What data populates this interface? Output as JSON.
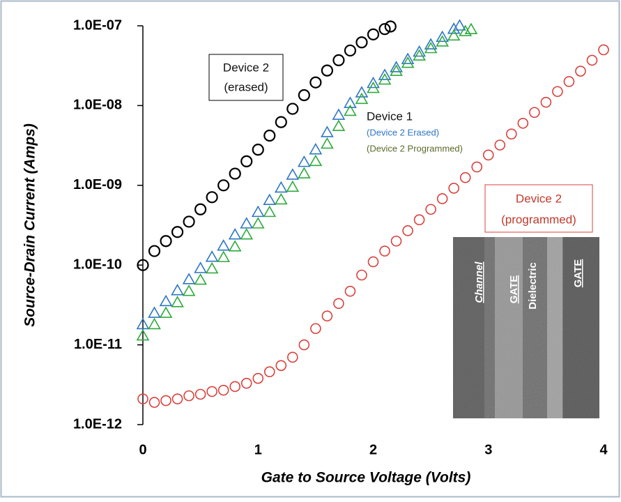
{
  "chart_data": {
    "type": "scatter",
    "log_y": true,
    "xlabel": "Gate to Source Voltage (Volts)",
    "ylabel": "Source-Drain Current (Amps)",
    "xlim": [
      0,
      4
    ],
    "xticks": [
      0,
      1,
      2,
      3,
      4
    ],
    "ylim": [
      1e-12,
      1e-07
    ],
    "yticks": [
      {
        "value": 1e-12,
        "label": "1.0E-12"
      },
      {
        "value": 1e-11,
        "label": "1.0E-11"
      },
      {
        "value": 1e-10,
        "label": "1.0E-10"
      },
      {
        "value": 1e-09,
        "label": "1.0E-09"
      },
      {
        "value": 1e-08,
        "label": "1.0E-08"
      },
      {
        "value": 1e-07,
        "label": "1.0E-07"
      }
    ],
    "series": [
      {
        "name": "Device 2",
        "note": "(erased)",
        "color": "#000000",
        "marker": "circle",
        "x": [
          0,
          0.1,
          0.2,
          0.3,
          0.4,
          0.5,
          0.6,
          0.7,
          0.8,
          0.9,
          1.0,
          1.1,
          1.2,
          1.3,
          1.4,
          1.5,
          1.6,
          1.7,
          1.8,
          1.9,
          2.0,
          2.1,
          2.15
        ],
        "values": [
          1e-10,
          1.5e-10,
          2e-10,
          2.6e-10,
          3.5e-10,
          5e-10,
          7.1e-10,
          1e-09,
          1.4e-09,
          2e-09,
          2.8e-09,
          4.2e-09,
          6.2e-09,
          9.1e-09,
          1.35e-08,
          1.95e-08,
          2.75e-08,
          3.7e-08,
          4.9e-08,
          6.2e-08,
          7.8e-08,
          9.1e-08,
          9.8e-08
        ]
      },
      {
        "name": "(Device 2 Erased)",
        "color": "#2e75c6",
        "marker": "triangle",
        "x": [
          0,
          0.1,
          0.2,
          0.3,
          0.4,
          0.5,
          0.6,
          0.7,
          0.8,
          0.9,
          1.0,
          1.1,
          1.2,
          1.3,
          1.4,
          1.5,
          1.6,
          1.7,
          1.8,
          1.9,
          2.0,
          2.1,
          2.2,
          2.3,
          2.4,
          2.5,
          2.6,
          2.7,
          2.75
        ],
        "values": [
          1.8e-11,
          2.5e-11,
          3.5e-11,
          4.8e-11,
          6.6e-11,
          9.1e-11,
          1.26e-10,
          1.74e-10,
          2.4e-10,
          3.3e-10,
          4.6e-10,
          6.5e-10,
          9.3e-10,
          1.35e-09,
          1.95e-09,
          2.8e-09,
          4.6e-09,
          7.6e-09,
          1.07e-08,
          1.45e-08,
          1.9e-08,
          2.4e-08,
          3e-08,
          3.8e-08,
          4.7e-08,
          5.8e-08,
          7.2e-08,
          9.1e-08,
          1e-07
        ]
      },
      {
        "name": "(Device 2 Programmed)",
        "color": "#2eaa3c",
        "marker": "triangle",
        "x": [
          0,
          0.1,
          0.2,
          0.3,
          0.4,
          0.5,
          0.6,
          0.7,
          0.8,
          0.9,
          1.0,
          1.1,
          1.2,
          1.3,
          1.4,
          1.5,
          1.6,
          1.7,
          1.8,
          1.9,
          2.0,
          2.1,
          2.2,
          2.3,
          2.4,
          2.5,
          2.6,
          2.7,
          2.8,
          2.85
        ],
        "values": [
          1.3e-11,
          1.8e-11,
          2.5e-11,
          3.4e-11,
          4.7e-11,
          6.5e-11,
          9e-11,
          1.25e-10,
          1.7e-10,
          2.4e-10,
          3.3e-10,
          4.6e-10,
          6.6e-10,
          9.5e-10,
          1.4e-09,
          2e-09,
          3.3e-09,
          5.5e-09,
          8.5e-09,
          1.2e-08,
          1.65e-08,
          2.1e-08,
          2.7e-08,
          3.4e-08,
          4.2e-08,
          5.2e-08,
          6.3e-08,
          7.5e-08,
          8.5e-08,
          9e-08
        ]
      },
      {
        "name": "Device 2",
        "note": "(programmed)",
        "color": "#d9413c",
        "marker": "circle",
        "x": [
          0,
          0.1,
          0.2,
          0.3,
          0.4,
          0.5,
          0.6,
          0.7,
          0.8,
          0.9,
          1.0,
          1.1,
          1.2,
          1.3,
          1.4,
          1.5,
          1.6,
          1.7,
          1.8,
          1.9,
          2.0,
          2.1,
          2.2,
          2.3,
          2.4,
          2.5,
          2.6,
          2.7,
          2.8,
          2.9,
          3.0,
          3.1,
          3.2,
          3.3,
          3.4,
          3.5,
          3.6,
          3.7,
          3.8,
          3.9,
          4.0
        ],
        "values": [
          2.1e-12,
          1.9e-12,
          2e-12,
          2.1e-12,
          2.3e-12,
          2.4e-12,
          2.6e-12,
          2.7e-12,
          3e-12,
          3.3e-12,
          3.8e-12,
          4.6e-12,
          5.5e-12,
          7e-12,
          1e-11,
          1.6e-11,
          2.3e-11,
          3.3e-11,
          4.7e-11,
          7.5e-11,
          1.1e-10,
          1.5e-10,
          2e-10,
          2.7e-10,
          3.7e-10,
          5e-10,
          6.8e-10,
          9.2e-10,
          1.25e-09,
          1.7e-09,
          2.4e-09,
          3.2e-09,
          4.4e-09,
          6e-09,
          8.2e-09,
          1.1e-08,
          1.5e-08,
          2e-08,
          2.7e-08,
          3.7e-08,
          5e-08
        ]
      }
    ],
    "annotation": "Device 1"
  },
  "inset": {
    "labels": [
      "Channel",
      "GATE",
      "Dielectric",
      "GATE"
    ]
  }
}
